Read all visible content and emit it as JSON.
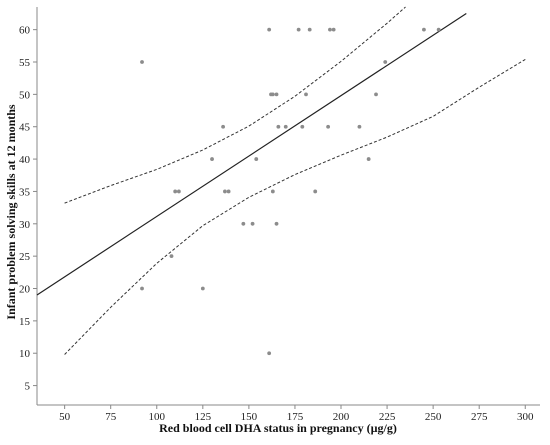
{
  "chart_data": {
    "type": "scatter",
    "title": "",
    "xlabel": "Red blood cell DHA status in pregnancy (µg/g)",
    "ylabel": "Infant problem solving skills at 12 months",
    "xlim": [
      35,
      308
    ],
    "ylim": [
      2,
      63.5
    ],
    "xticks": [
      "50",
      "75",
      "100",
      "125",
      "150",
      "175",
      "200",
      "225",
      "250",
      "275",
      "300"
    ],
    "yticks": [
      "5",
      "10",
      "15",
      "20",
      "25",
      "30",
      "35",
      "40",
      "45",
      "50",
      "55",
      "60"
    ],
    "grid": false,
    "point_color": "#8c8c8c",
    "line_color": "#222222",
    "points": [
      [
        92,
        55
      ],
      [
        92,
        20
      ],
      [
        108,
        25
      ],
      [
        110,
        35
      ],
      [
        112,
        35
      ],
      [
        125,
        20
      ],
      [
        130,
        40
      ],
      [
        136,
        45
      ],
      [
        137,
        35
      ],
      [
        139,
        35
      ],
      [
        147,
        30
      ],
      [
        152,
        30
      ],
      [
        154,
        40
      ],
      [
        161,
        60
      ],
      [
        161,
        10
      ],
      [
        162,
        50
      ],
      [
        163,
        35
      ],
      [
        163,
        50
      ],
      [
        165,
        50
      ],
      [
        165,
        30
      ],
      [
        166,
        45
      ],
      [
        170,
        45
      ],
      [
        177,
        60
      ],
      [
        179,
        45
      ],
      [
        181,
        50
      ],
      [
        183,
        60
      ],
      [
        186,
        35
      ],
      [
        193,
        45
      ],
      [
        194,
        60
      ],
      [
        196,
        60
      ],
      [
        210,
        45
      ],
      [
        215,
        40
      ],
      [
        219,
        50
      ],
      [
        224,
        55
      ],
      [
        245,
        60
      ],
      [
        253,
        60
      ]
    ],
    "fit_line": {
      "x": [
        35,
        268
      ],
      "y": [
        19.0,
        62.5
      ]
    },
    "ci_upper": {
      "x": [
        50,
        75,
        100,
        125,
        150,
        175,
        200,
        225,
        235
      ],
      "y": [
        33.2,
        35.9,
        38.4,
        41.4,
        45.1,
        49.7,
        55.1,
        61.0,
        63.5
      ]
    },
    "ci_lower": {
      "x": [
        50,
        75,
        100,
        125,
        150,
        175,
        200,
        225,
        250,
        275,
        300
      ],
      "y": [
        9.8,
        17.1,
        23.9,
        29.7,
        34.1,
        37.6,
        40.6,
        43.4,
        46.6,
        51.1,
        55.4
      ]
    }
  }
}
